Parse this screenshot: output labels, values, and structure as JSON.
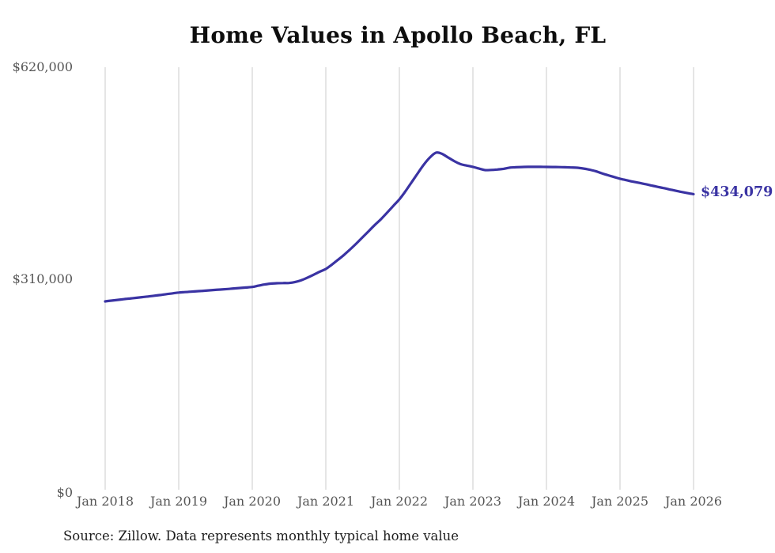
{
  "title": "Home Values in Apollo Beach, FL",
  "end_label": "$434,079",
  "source_note": "Source: Zillow. Data represents monthly typical home value",
  "colors": {
    "line": "#3a33a3",
    "end_label_text": "#3a33a3",
    "gridline": "#cbcbcb",
    "axis_text": "#555555",
    "title_text": "#0e0e0e",
    "source_text": "#1d1d1d",
    "background": "#ffffff"
  },
  "chart_data": {
    "type": "line",
    "title": "Home Values in Apollo Beach, FL",
    "series_name": "Monthly typical home value",
    "x_interval": "monthly",
    "x_start": "Jan 2018",
    "x_end": "Jan 2026",
    "x_tick_labels": [
      "Jan 2018",
      "Jan 2019",
      "Jan 2020",
      "Jan 2021",
      "Jan 2022",
      "Jan 2023",
      "Jan 2024",
      "Jan 2025",
      "Jan 2026"
    ],
    "y_ticks": [
      0,
      310000,
      620000
    ],
    "y_tick_labels": [
      "$0",
      "$310,000",
      "$620,000"
    ],
    "ylim": [
      0,
      620000
    ],
    "grid": "vertical-only",
    "legend": "none",
    "final_value": 434079,
    "values": [
      277000,
      278100,
      279200,
      280200,
      281200,
      282200,
      283200,
      284200,
      285300,
      286400,
      287600,
      288800,
      290000,
      290600,
      291200,
      291900,
      292500,
      293200,
      293900,
      294500,
      295200,
      296000,
      296700,
      297400,
      298200,
      300000,
      301800,
      303000,
      303600,
      303900,
      304000,
      305500,
      308000,
      311800,
      316000,
      320500,
      324500,
      331000,
      338000,
      345400,
      353500,
      362000,
      371000,
      380000,
      389000,
      397500,
      407000,
      416800,
      426500,
      438500,
      451500,
      464700,
      477500,
      488000,
      494900,
      493000,
      487500,
      482200,
      478000,
      476000,
      474100,
      471500,
      469400,
      469600,
      470200,
      471200,
      472900,
      473500,
      473900,
      474100,
      474100,
      474100,
      474000,
      473900,
      473700,
      473500,
      473200,
      472800,
      471700,
      470000,
      467800,
      464700,
      461900,
      459300,
      456700,
      454600,
      452700,
      450900,
      449000,
      447000,
      445100,
      443200,
      441200,
      439300,
      437400,
      435600,
      434079
    ]
  }
}
